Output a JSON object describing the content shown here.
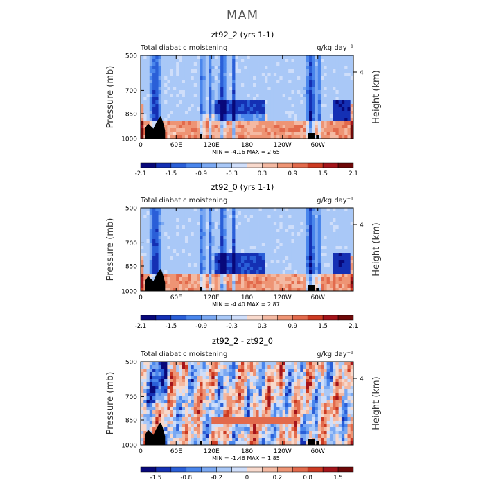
{
  "figure": {
    "title": "MAM"
  },
  "chart_data": [
    {
      "type": "heatmap",
      "title": "zt92_2 (yrs 1-1)",
      "left_label": "Total diabatic moistening",
      "right_label": "g/kg day⁻¹",
      "ylabel": "Pressure (mb)",
      "y2label": "Height (km)",
      "y2ticks": [
        "4"
      ],
      "yticks": [
        "500",
        "700",
        "850",
        "1000"
      ],
      "xticks": [
        "0",
        "60E",
        "120E",
        "180",
        "120W",
        "60W"
      ],
      "stats": "MIN =   -4.16   MAX =    2.65",
      "colorbar_ticks": [
        "-2.1",
        "-1.5",
        "-0.9",
        "-0.3",
        "0.3",
        "0.9",
        "1.5",
        "2.1"
      ],
      "colorbar_colors": [
        "#08087a",
        "#1430b4",
        "#2a5fd8",
        "#4a86ec",
        "#7aa8f2",
        "#a9c8f7",
        "#cfdefa",
        "#f8d9cc",
        "#f4b9a2",
        "#ee9474",
        "#e26a4c",
        "#cc3a22",
        "#a4141a",
        "#6e0808"
      ],
      "value_range": [
        -4.16,
        2.65
      ]
    },
    {
      "type": "heatmap",
      "title": "zt92_0 (yrs 1-1)",
      "left_label": "Total diabatic moistening",
      "right_label": "g/kg day⁻¹",
      "ylabel": "Pressure (mb)",
      "y2label": "Height (km)",
      "y2ticks": [
        "4"
      ],
      "yticks": [
        "500",
        "700",
        "850",
        "1000"
      ],
      "xticks": [
        "0",
        "60E",
        "120E",
        "180",
        "120W",
        "60W"
      ],
      "stats": "MIN =   -4.40   MAX =    2.87",
      "colorbar_ticks": [
        "-2.1",
        "-1.5",
        "-0.9",
        "-0.3",
        "0.3",
        "0.9",
        "1.5",
        "2.1"
      ],
      "colorbar_colors": [
        "#08087a",
        "#1430b4",
        "#2a5fd8",
        "#4a86ec",
        "#7aa8f2",
        "#a9c8f7",
        "#cfdefa",
        "#f8d9cc",
        "#f4b9a2",
        "#ee9474",
        "#e26a4c",
        "#cc3a22",
        "#a4141a",
        "#6e0808"
      ],
      "value_range": [
        -4.4,
        2.87
      ]
    },
    {
      "type": "heatmap",
      "title": "zt92_2 - zt92_0",
      "left_label": "Total diabatic moistening",
      "right_label": "g/kg day⁻¹",
      "ylabel": "Pressure (mb)",
      "y2label": "Height (km)",
      "y2ticks": [
        "4"
      ],
      "yticks": [
        "500",
        "700",
        "850",
        "1000"
      ],
      "xticks": [
        "0",
        "60E",
        "120E",
        "180",
        "120W",
        "60W"
      ],
      "stats": "MIN =   -1.46   MAX =    1.85",
      "colorbar_ticks": [
        "-1.5",
        "-0.8",
        "-0.2",
        "0",
        "0.2",
        "0.8",
        "1.5"
      ],
      "colorbar_colors": [
        "#08087a",
        "#1430b4",
        "#2a5fd8",
        "#4a86ec",
        "#7aa8f2",
        "#a9c8f7",
        "#cfdefa",
        "#f8d9cc",
        "#f4b9a2",
        "#ee9474",
        "#e26a4c",
        "#cc3a22",
        "#a4141a",
        "#6e0808"
      ],
      "value_range": [
        -1.46,
        1.85
      ]
    }
  ]
}
